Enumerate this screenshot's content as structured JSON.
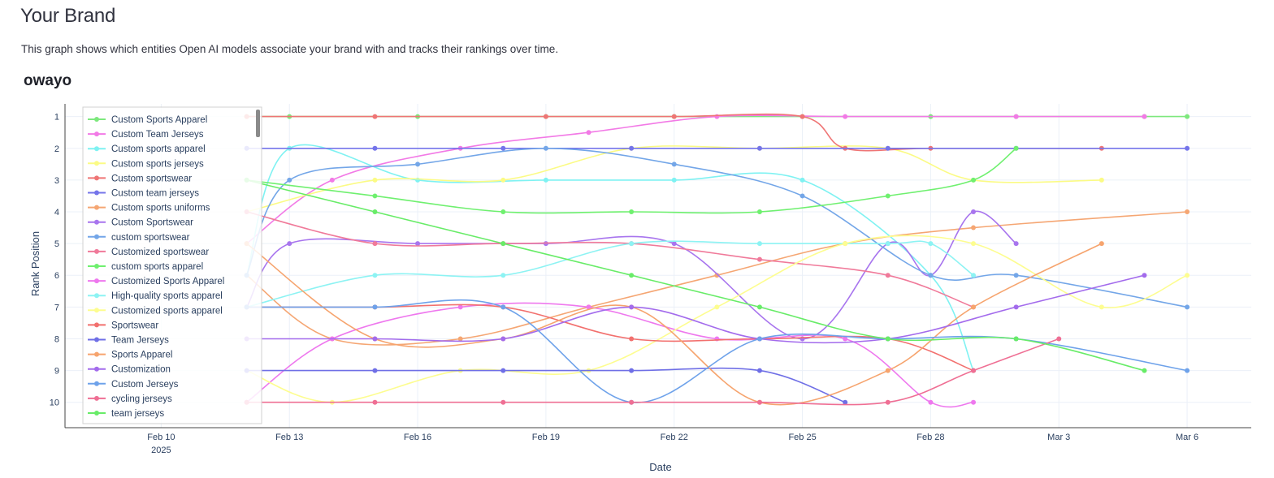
{
  "page": {
    "title": "Your Brand",
    "description": "This graph shows which entities Open AI models associate your brand with and tracks their rankings over time.",
    "chart_heading": "owayo"
  },
  "chart_data": {
    "type": "line",
    "xlabel": "Date",
    "ylabel": "Rank Position",
    "x_ticks": [
      {
        "date": "2025-02-10",
        "label": "Feb 10",
        "sublabel": "2025"
      },
      {
        "date": "2025-02-13",
        "label": "Feb 13"
      },
      {
        "date": "2025-02-16",
        "label": "Feb 16"
      },
      {
        "date": "2025-02-19",
        "label": "Feb 19"
      },
      {
        "date": "2025-02-22",
        "label": "Feb 22"
      },
      {
        "date": "2025-02-25",
        "label": "Feb 25"
      },
      {
        "date": "2025-02-28",
        "label": "Feb 28"
      },
      {
        "date": "2025-03-03",
        "label": "Mar 3"
      },
      {
        "date": "2025-03-06",
        "label": "Mar 6"
      }
    ],
    "xlim": [
      "2025-02-07T18:00",
      "2025-03-07T12:00"
    ],
    "y_ticks": [
      1,
      2,
      3,
      4,
      5,
      6,
      7,
      8,
      9,
      10
    ],
    "ylim": [
      10.8,
      0.6
    ],
    "y_reversed": true,
    "grid": true,
    "legend_position": "top-left",
    "series": [
      {
        "name": "Custom Sports Apparel",
        "color": "#7de87d",
        "points": [
          [
            "2025-02-12",
            1
          ],
          [
            "2025-02-13",
            1
          ],
          [
            "2025-02-16",
            1
          ],
          [
            "2025-02-19",
            1
          ],
          [
            "2025-02-22",
            1
          ],
          [
            "2025-02-25",
            1
          ],
          [
            "2025-02-28",
            1
          ],
          [
            "2025-03-02",
            1
          ],
          [
            "2025-03-05",
            1
          ],
          [
            "2025-03-06",
            1
          ]
        ]
      },
      {
        "name": "Custom Team Jerseys",
        "color": "#f27ae6",
        "points": [
          [
            "2025-02-12",
            5
          ],
          [
            "2025-02-14",
            3
          ],
          [
            "2025-02-17",
            2
          ],
          [
            "2025-02-20",
            1.5
          ],
          [
            "2025-02-23",
            1
          ],
          [
            "2025-02-26",
            1
          ],
          [
            "2025-03-02",
            1
          ],
          [
            "2025-03-05",
            1
          ]
        ]
      },
      {
        "name": "Custom sports apparel",
        "color": "#7ff2f2",
        "points": [
          [
            "2025-02-12",
            6
          ],
          [
            "2025-02-13",
            2
          ],
          [
            "2025-02-16",
            3
          ],
          [
            "2025-02-19",
            3
          ],
          [
            "2025-02-22",
            3
          ],
          [
            "2025-02-25",
            3
          ],
          [
            "2025-02-28",
            6
          ],
          [
            "2025-03-01",
            9
          ]
        ]
      },
      {
        "name": "Custom sports jerseys",
        "color": "#fbfb85",
        "points": [
          [
            "2025-02-12",
            4
          ],
          [
            "2025-02-15",
            3
          ],
          [
            "2025-02-18",
            3
          ],
          [
            "2025-02-21",
            2
          ],
          [
            "2025-02-24",
            2
          ],
          [
            "2025-02-27",
            2
          ],
          [
            "2025-03-01",
            3
          ],
          [
            "2025-03-04",
            3
          ]
        ]
      },
      {
        "name": "Custom sportswear",
        "color": "#ef7575",
        "points": [
          [
            "2025-02-12",
            1
          ],
          [
            "2025-02-15",
            1
          ],
          [
            "2025-02-19",
            1
          ],
          [
            "2025-02-22",
            1
          ],
          [
            "2025-02-25",
            1
          ],
          [
            "2025-02-26",
            2
          ],
          [
            "2025-02-28",
            2
          ],
          [
            "2025-03-04",
            2
          ]
        ]
      },
      {
        "name": "Custom team jerseys",
        "color": "#7474ea",
        "points": [
          [
            "2025-02-12",
            2
          ],
          [
            "2025-02-15",
            2
          ],
          [
            "2025-02-18",
            2
          ],
          [
            "2025-02-21",
            2
          ],
          [
            "2025-02-24",
            2
          ],
          [
            "2025-02-27",
            2
          ],
          [
            "2025-03-02",
            2
          ],
          [
            "2025-03-06",
            2
          ]
        ]
      },
      {
        "name": "Custom sports uniforms",
        "color": "#f5a673",
        "points": [
          [
            "2025-02-12",
            6
          ],
          [
            "2025-02-14",
            8
          ],
          [
            "2025-02-17",
            8
          ],
          [
            "2025-02-20",
            7
          ],
          [
            "2025-02-23",
            6
          ],
          [
            "2025-02-26",
            5
          ],
          [
            "2025-03-01",
            4.5
          ],
          [
            "2025-03-06",
            4
          ]
        ]
      },
      {
        "name": "Custom Sportswear",
        "color": "#a875ee",
        "points": [
          [
            "2025-02-12",
            7
          ],
          [
            "2025-02-13",
            5
          ],
          [
            "2025-02-16",
            5
          ],
          [
            "2025-02-19",
            5
          ],
          [
            "2025-02-22",
            5
          ],
          [
            "2025-02-25",
            8
          ],
          [
            "2025-02-27",
            5
          ],
          [
            "2025-02-28",
            6
          ],
          [
            "2025-03-01",
            4
          ],
          [
            "2025-03-02",
            5
          ]
        ]
      },
      {
        "name": "custom sportswear",
        "color": "#73a6e8",
        "points": [
          [
            "2025-02-12",
            6
          ],
          [
            "2025-02-13",
            3
          ],
          [
            "2025-02-16",
            2.5
          ],
          [
            "2025-02-19",
            2
          ],
          [
            "2025-02-22",
            2.5
          ],
          [
            "2025-02-25",
            3.5
          ],
          [
            "2025-02-28",
            6
          ],
          [
            "2025-03-02",
            6
          ],
          [
            "2025-03-06",
            7
          ]
        ]
      },
      {
        "name": "Customized sportswear",
        "color": "#f07a9a",
        "points": [
          [
            "2025-02-12",
            4
          ],
          [
            "2025-02-15",
            5
          ],
          [
            "2025-02-18",
            5
          ],
          [
            "2025-02-21",
            5
          ],
          [
            "2025-02-24",
            5.5
          ],
          [
            "2025-02-27",
            6
          ],
          [
            "2025-03-01",
            7
          ]
        ]
      },
      {
        "name": "custom sports apparel",
        "color": "#6ff06f",
        "points": [
          [
            "2025-02-12",
            3
          ],
          [
            "2025-02-15",
            3.5
          ],
          [
            "2025-02-18",
            4
          ],
          [
            "2025-02-21",
            4
          ],
          [
            "2025-02-24",
            4
          ],
          [
            "2025-02-27",
            3.5
          ],
          [
            "2025-03-01",
            3
          ],
          [
            "2025-03-02",
            2
          ]
        ]
      },
      {
        "name": "Customized Sports Apparel",
        "color": "#ee78ee",
        "points": [
          [
            "2025-02-12",
            10
          ],
          [
            "2025-02-14",
            8
          ],
          [
            "2025-02-17",
            7
          ],
          [
            "2025-02-20",
            7
          ],
          [
            "2025-02-23",
            8
          ],
          [
            "2025-02-26",
            8
          ],
          [
            "2025-02-28",
            10
          ],
          [
            "2025-03-01",
            10
          ]
        ]
      },
      {
        "name": "High-quality sports apparel",
        "color": "#8df3f3",
        "points": [
          [
            "2025-02-12",
            7
          ],
          [
            "2025-02-15",
            6
          ],
          [
            "2025-02-18",
            6
          ],
          [
            "2025-02-21",
            5
          ],
          [
            "2025-02-24",
            5
          ],
          [
            "2025-02-27",
            5
          ],
          [
            "2025-02-28",
            5
          ],
          [
            "2025-03-01",
            6
          ]
        ]
      },
      {
        "name": "Customized sports apparel",
        "color": "#fdfd90",
        "points": [
          [
            "2025-02-12",
            9
          ],
          [
            "2025-02-14",
            10
          ],
          [
            "2025-02-17",
            9
          ],
          [
            "2025-02-20",
            9
          ],
          [
            "2025-02-23",
            7
          ],
          [
            "2025-02-26",
            5
          ],
          [
            "2025-03-01",
            5
          ],
          [
            "2025-03-04",
            7
          ],
          [
            "2025-03-06",
            6
          ]
        ]
      },
      {
        "name": "Sportswear",
        "color": "#f2706e",
        "points": [
          [
            "2025-02-12",
            7
          ],
          [
            "2025-02-15",
            7
          ],
          [
            "2025-02-18",
            7
          ],
          [
            "2025-02-21",
            8
          ],
          [
            "2025-02-24",
            8
          ],
          [
            "2025-02-27",
            8
          ],
          [
            "2025-03-01",
            9
          ]
        ]
      },
      {
        "name": "Team Jerseys",
        "color": "#6f6fe6",
        "points": [
          [
            "2025-02-12",
            9
          ],
          [
            "2025-02-15",
            9
          ],
          [
            "2025-02-18",
            9
          ],
          [
            "2025-02-21",
            9
          ],
          [
            "2025-02-24",
            9
          ],
          [
            "2025-02-26",
            10
          ]
        ]
      },
      {
        "name": "Sports Apparel",
        "color": "#f6a46e",
        "points": [
          [
            "2025-02-12",
            5
          ],
          [
            "2025-02-15",
            8
          ],
          [
            "2025-02-18",
            8
          ],
          [
            "2025-02-21",
            7
          ],
          [
            "2025-02-24",
            10
          ],
          [
            "2025-02-27",
            9
          ],
          [
            "2025-03-01",
            7
          ],
          [
            "2025-03-04",
            5
          ]
        ]
      },
      {
        "name": "Customization",
        "color": "#a36bec",
        "points": [
          [
            "2025-02-12",
            8
          ],
          [
            "2025-02-15",
            8
          ],
          [
            "2025-02-18",
            8
          ],
          [
            "2025-02-21",
            7
          ],
          [
            "2025-02-24",
            8
          ],
          [
            "2025-02-27",
            8
          ],
          [
            "2025-03-02",
            7
          ],
          [
            "2025-03-05",
            6
          ]
        ]
      },
      {
        "name": "Custom Jerseys",
        "color": "#6ea2ea",
        "points": [
          [
            "2025-02-12",
            7
          ],
          [
            "2025-02-15",
            7
          ],
          [
            "2025-02-18",
            7
          ],
          [
            "2025-02-21",
            10
          ],
          [
            "2025-02-24",
            8
          ],
          [
            "2025-02-27",
            8
          ],
          [
            "2025-03-02",
            8
          ],
          [
            "2025-03-06",
            9
          ]
        ]
      },
      {
        "name": "cycling jerseys",
        "color": "#ef6f94",
        "points": [
          [
            "2025-02-12",
            10
          ],
          [
            "2025-02-15",
            10
          ],
          [
            "2025-02-18",
            10
          ],
          [
            "2025-02-21",
            10
          ],
          [
            "2025-02-24",
            10
          ],
          [
            "2025-02-27",
            10
          ],
          [
            "2025-03-01",
            9
          ],
          [
            "2025-03-03",
            8
          ]
        ]
      },
      {
        "name": "team jerseys",
        "color": "#68ec68",
        "points": [
          [
            "2025-02-12",
            3
          ],
          [
            "2025-02-15",
            4
          ],
          [
            "2025-02-18",
            5
          ],
          [
            "2025-02-21",
            6
          ],
          [
            "2025-02-24",
            7
          ],
          [
            "2025-02-27",
            8
          ],
          [
            "2025-03-02",
            8
          ],
          [
            "2025-03-05",
            9
          ]
        ]
      }
    ]
  }
}
